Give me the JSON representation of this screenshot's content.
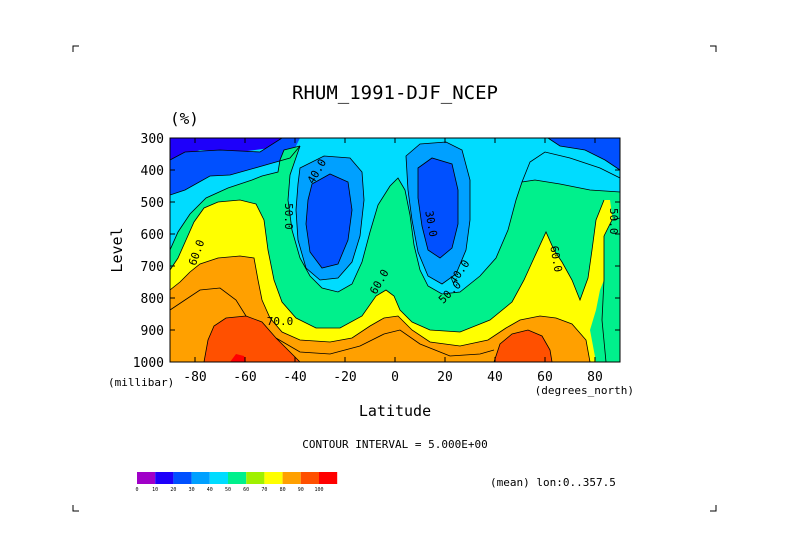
{
  "chart_data": {
    "type": "contour",
    "title": "RHUM_1991-DJF_NCEP",
    "units": "(%)",
    "xlabel": "Latitude",
    "ylabel": "Level",
    "x_units": "(degrees_north)",
    "y_units": "(millibar)",
    "xlim": [
      -90,
      90
    ],
    "ylim": [
      1000,
      300
    ],
    "x_ticks": [
      -80,
      -60,
      -40,
      -20,
      0,
      20,
      40,
      60,
      80
    ],
    "x_tick_labels": [
      "-80",
      "-60",
      "-40",
      "-20",
      "0",
      "20",
      "40",
      "60",
      "80"
    ],
    "y_ticks": [
      300,
      400,
      500,
      600,
      700,
      800,
      900,
      1000
    ],
    "y_tick_labels": [
      "300",
      "400",
      "500",
      "600",
      "700",
      "800",
      "900",
      "1000"
    ],
    "contour_interval_text": "CONTOUR INTERVAL = 5.000E+00",
    "subtitle": "(mean) lon:0..357.5",
    "contour_labels": [
      {
        "text": "40.0",
        "x": -30,
        "y": 410,
        "angle": -60
      },
      {
        "text": "50.0",
        "x": -44,
        "y": 545,
        "angle": 90
      },
      {
        "text": "30.0",
        "x": 13,
        "y": 570,
        "angle": 80
      },
      {
        "text": "40.0",
        "x": 27,
        "y": 725,
        "angle": -55
      },
      {
        "text": "60.0",
        "x": -5,
        "y": 755,
        "angle": -60
      },
      {
        "text": "50.0",
        "x": 23,
        "y": 790,
        "angle": -45
      },
      {
        "text": "60.0",
        "x": -78,
        "y": 662,
        "angle": -70
      },
      {
        "text": "70.0",
        "x": -46,
        "y": 885,
        "angle": 0
      },
      {
        "text": "60.0",
        "x": 63,
        "y": 680,
        "angle": 80
      },
      {
        "text": "50.0",
        "x": 86,
        "y": 560,
        "angle": 90
      }
    ],
    "colorbar": {
      "levels": [
        "0",
        "10",
        "20",
        "30",
        "40",
        "50",
        "60",
        "70",
        "80",
        "90",
        "100"
      ],
      "colors": [
        "#a000c8",
        "#1e00fa",
        "#0050ff",
        "#00a0ff",
        "#00dcff",
        "#00f08c",
        "#a0f000",
        "#ffff00",
        "#ffa000",
        "#ff5000",
        "#ff0000"
      ]
    },
    "fields": {
      "levels_fill": [
        {
          "min": 0,
          "color": "#00dcff"
        },
        {
          "min": 30,
          "color": "#0050ff"
        },
        {
          "min": 40,
          "color": "#00a0ff"
        },
        {
          "min": 50,
          "color": "#00dcff"
        },
        {
          "min": 60,
          "color": "#00f08c"
        },
        {
          "min": 70,
          "color": "#ffff00"
        },
        {
          "min": 80,
          "color": "#ffa000"
        },
        {
          "min": 90,
          "color": "#ff5000"
        }
      ]
    }
  }
}
